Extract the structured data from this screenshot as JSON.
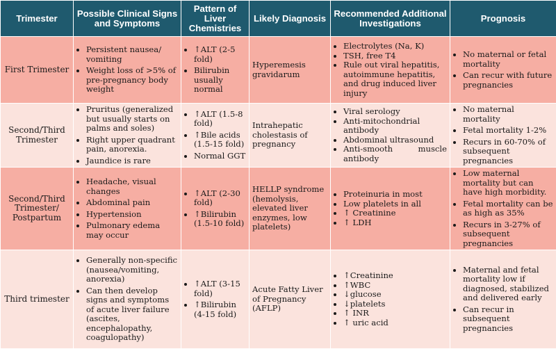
{
  "headers": [
    "Trimester",
    "Possible Clinical Signs and Symptoms",
    "Pattern of Liver Chemistries",
    "Likely Diagnosis",
    "Recommended Additional Investigations",
    "Prognosis"
  ],
  "rows": [
    {
      "trimester": "First Trimester",
      "signs": [
        "Persistent nausea/ vomiting",
        "Weight loss of >5% of pre-pregnancy body weight"
      ],
      "chem": [
        "↑ALT (2-5 fold)",
        "Bilirubin usually normal"
      ],
      "diagnosis": "Hyperemesis gravidarum",
      "investigations": [
        "Electrolytes (Na, K)",
        "TSH, free T4",
        "Rule out viral hepatitis, autoimmune hepatitis, and drug induced liver injury"
      ],
      "prognosis": [
        "No maternal or fetal mortality",
        "Can recur with future pregnancies"
      ]
    },
    {
      "trimester": "Second/Third Trimester",
      "signs": [
        "Pruritus (generalized but usually starts on palms and soles)",
        "Right upper quadrant pain, anorexia.",
        "Jaundice is rare"
      ],
      "chem": [
        "↑ALT (1.5-8 fold)",
        "↑Bile acids (1.5-15 fold)",
        "Normal GGT"
      ],
      "diagnosis": "Intrahepatic cholestasis of pregnancy",
      "investigations": [
        "Viral serology",
        "Anti-mitochondrial antibody",
        "Abdominal ultrasound",
        "Anti-smooth muscle antibody"
      ],
      "prognosis": [
        "No maternal mortality",
        "Fetal mortality 1-2%",
        "Recurs in 60-70% of subsequent pregnancies"
      ]
    },
    {
      "trimester": "Second/Third Trimester/ Postpartum",
      "signs": [
        "Headache, visual changes",
        "Abdominal pain",
        "Hypertension",
        "Pulmonary edema may occur"
      ],
      "chem": [
        "↑ALT (2-30 fold)",
        "↑Bilirubin (1.5-10 fold)"
      ],
      "diagnosis": "HELLP syndrome (hemolysis, elevated liver enzymes, low platelets)",
      "investigations": [
        "Proteinuria in most",
        "Low platelets in all",
        "↑ Creatinine",
        "↑ LDH"
      ],
      "prognosis": [
        "Low maternal mortality but can have high morbidity.",
        "Fetal mortality can be as high as 35%",
        "Recurs in 3-27% of subsequent pregnancies"
      ]
    },
    {
      "trimester": "Third trimester",
      "signs": [
        "Generally non-specific (nausea/vomiting, anorexia)",
        "Can then develop signs and symptoms of acute liver failure (ascites, encephalopathy, coagulopathy)"
      ],
      "chem": [
        "↑ALT (3-15 fold)",
        "↑Bilirubin (4-15 fold)"
      ],
      "diagnosis": "Acute Fatty Liver of Pregnancy (AFLP)",
      "investigations": [
        "↑Creatinine",
        "↑WBC",
        "↓glucose",
        "↓platelets",
        "↑ INR",
        "↑ uric acid"
      ],
      "prognosis": [
        "Maternal and fetal mortality low if diagnosed, stabilized and delivered early",
        "Can recur in subsequent pregnancies"
      ]
    }
  ]
}
